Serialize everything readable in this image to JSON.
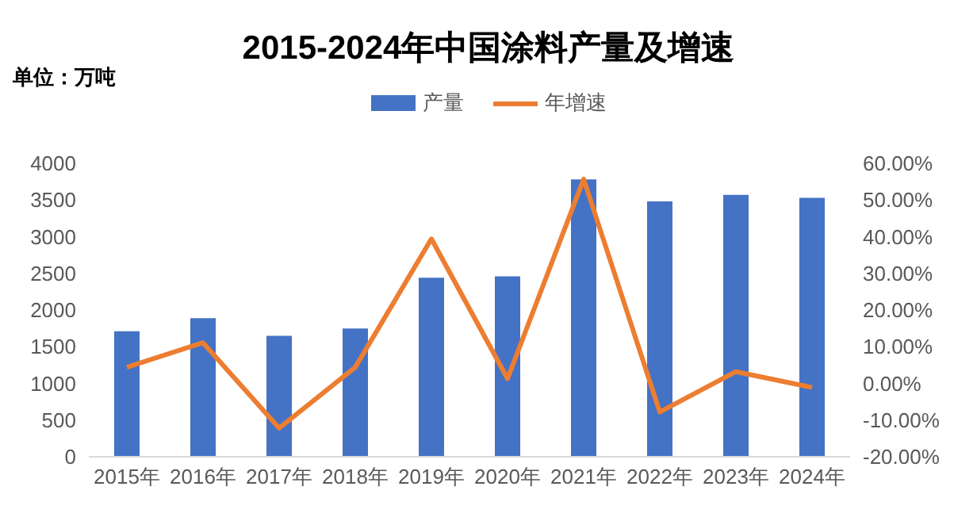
{
  "chart_data": {
    "type": "bar",
    "title": "2015-2024年中国涂料产量及增速",
    "ylabel": "单位：万吨",
    "categories": [
      "2015年",
      "2016年",
      "2017年",
      "2018年",
      "2019年",
      "2020年",
      "2021年",
      "2022年",
      "2023年",
      "2024年"
    ],
    "series": [
      {
        "name": "产量",
        "color": "#4472c4",
        "values": [
          1710,
          1890,
          1650,
          1750,
          2440,
          2460,
          3780,
          3480,
          3570,
          3530
        ]
      },
      {
        "name": "年增速",
        "type": "line",
        "axis": "y2",
        "color": "#ed7d31",
        "values": [
          4.4,
          11.1,
          -12.2,
          4.4,
          39.4,
          1.3,
          55.7,
          -7.8,
          3.2,
          -1.1
        ]
      }
    ],
    "ylim": [
      0,
      4000
    ],
    "yticks": [
      0,
      500,
      1000,
      1500,
      2000,
      2500,
      3000,
      3500,
      4000
    ],
    "y2lim": [
      -20,
      60
    ],
    "y2ticks": [
      {
        "value": -20,
        "label": "-20.00%"
      },
      {
        "value": -10,
        "label": "-10.00%"
      },
      {
        "value": 0,
        "label": "0.00%"
      },
      {
        "value": 10,
        "label": "10.00%"
      },
      {
        "value": 20,
        "label": "20.00%"
      },
      {
        "value": 30,
        "label": "30.00%"
      },
      {
        "value": 40,
        "label": "40.00%"
      },
      {
        "value": 50,
        "label": "50.00%"
      },
      {
        "value": 60,
        "label": "60.00%"
      }
    ],
    "legend": "top",
    "marker": "none",
    "grid": false
  }
}
